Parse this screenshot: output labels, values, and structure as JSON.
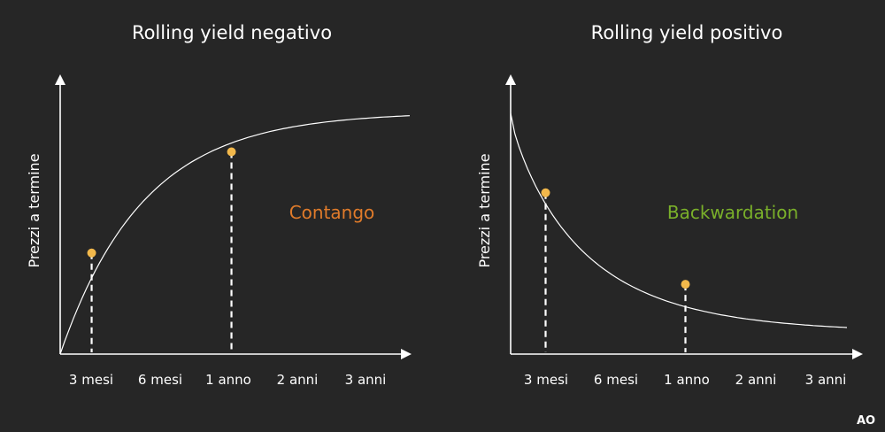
{
  "chart_data": [
    {
      "type": "line",
      "title": "Rolling yield negativo",
      "ylabel": "Prezzi a termine",
      "xlabel": "",
      "categories": [
        "3 mesi",
        "6 mesi",
        "1 anno",
        "2 anni",
        "3 anni"
      ],
      "shape": "concave-increasing",
      "annotation": {
        "text": "Contango",
        "color": "#e07b2a"
      },
      "markers": [
        {
          "x": 0.09,
          "y": 0.42
        },
        {
          "x": 0.49,
          "y": 0.84
        }
      ],
      "marker_color": "#f2b84b",
      "xlim": [
        0,
        1
      ],
      "ylim": [
        0,
        1
      ]
    },
    {
      "type": "line",
      "title": "Rolling yield positivo",
      "ylabel": "Prezzi a termine",
      "xlabel": "",
      "categories": [
        "3 mesi",
        "6 mesi",
        "1 anno",
        "2 anni",
        "3 anni"
      ],
      "shape": "convex-decreasing",
      "annotation": {
        "text": "Backwardation",
        "color": "#7ab02a"
      },
      "markers": [
        {
          "x": 0.1,
          "y": 0.67
        },
        {
          "x": 0.5,
          "y": 0.29
        }
      ],
      "marker_color": "#f2b84b",
      "xlim": [
        0,
        1
      ],
      "ylim": [
        0,
        1
      ]
    }
  ],
  "logo": {
    "text": "AO"
  }
}
